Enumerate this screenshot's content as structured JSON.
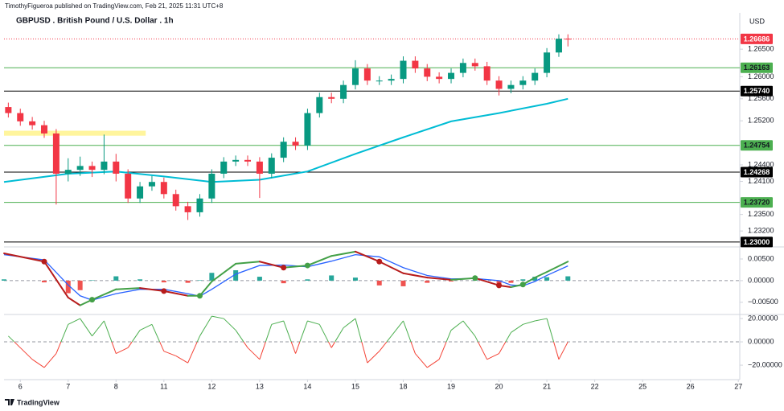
{
  "header": {
    "text": "TimothyFigueroa published on TradingView.com, Feb 21, 2025 11:31 UTC+8"
  },
  "footer": {
    "logo": "TradingView"
  },
  "chart_data": [
    {
      "type": "candlestick",
      "title": "GBPUSD . British Pound / U.S. Dollar . 1h",
      "currency": "USD",
      "xlim": [
        -0.34,
        15.03
      ],
      "xticks": [
        {
          "value": 0,
          "label": "6"
        },
        {
          "value": 1,
          "label": "7"
        },
        {
          "value": 2,
          "label": "8"
        },
        {
          "value": 3,
          "label": "11"
        },
        {
          "value": 4,
          "label": "12"
        },
        {
          "value": 5,
          "label": "13"
        },
        {
          "value": 6,
          "label": "14"
        },
        {
          "value": 7,
          "label": "15"
        },
        {
          "value": 8,
          "label": "18"
        },
        {
          "value": 9,
          "label": "19"
        },
        {
          "value": 10,
          "label": "20"
        },
        {
          "value": 11,
          "label": "21"
        },
        {
          "value": 12,
          "label": "22"
        },
        {
          "value": 13,
          "label": "25"
        },
        {
          "value": 14,
          "label": "26"
        },
        {
          "value": 15,
          "label": "27"
        }
      ],
      "ylim": [
        1.2294,
        1.2713
      ],
      "yticks": [
        {
          "value": 1.265,
          "label": "1.26500"
        },
        {
          "value": 1.26,
          "label": "1.26000"
        },
        {
          "value": 1.256,
          "label": "1.25600"
        },
        {
          "value": 1.252,
          "label": "1.25200"
        },
        {
          "value": 1.244,
          "label": "1.24400"
        },
        {
          "value": 1.241,
          "label": "1.24100"
        },
        {
          "value": 1.235,
          "label": "1.23500"
        },
        {
          "value": 1.232,
          "label": "1.23200"
        }
      ],
      "up_color": "#089981",
      "down_color": "#f23645",
      "x": [
        -0.25,
        0,
        0.25,
        0.5,
        0.75,
        1,
        1.25,
        1.5,
        1.75,
        2,
        2.25,
        2.5,
        2.75,
        3,
        3.25,
        3.5,
        3.75,
        4,
        4.25,
        4.5,
        4.75,
        5,
        5.25,
        5.5,
        5.75,
        6,
        6.25,
        6.5,
        6.75,
        7,
        7.25,
        7.5,
        7.75,
        8,
        8.25,
        8.5,
        8.75,
        9,
        9.25,
        9.5,
        9.75,
        10,
        10.25,
        10.5,
        10.75,
        11,
        11.25,
        11.44
      ],
      "open": [
        1.2545,
        1.2534,
        1.2519,
        1.2512,
        1.2497,
        1.2424,
        1.2431,
        1.2438,
        1.2431,
        1.2446,
        1.2424,
        1.2379,
        1.2401,
        1.2409,
        1.2387,
        1.2365,
        1.2354,
        1.2379,
        1.2424,
        1.2446,
        1.2449,
        1.2446,
        1.2424,
        1.2453,
        1.2482,
        1.2475,
        1.2534,
        1.2563,
        1.256,
        1.2585,
        1.2615,
        1.2593,
        1.2593,
        1.2596,
        1.2629,
        1.2615,
        1.26,
        1.2596,
        1.2607,
        1.2625,
        1.2619,
        1.2593,
        1.2578,
        1.2585,
        1.2593,
        1.2607,
        1.2644,
        1.2669
      ],
      "high": [
        1.2553,
        1.2542,
        1.2527,
        1.252,
        1.2505,
        1.2452,
        1.2455,
        1.2446,
        1.2495,
        1.246,
        1.2432,
        1.2409,
        1.242,
        1.2417,
        1.2395,
        1.2373,
        1.2387,
        1.2432,
        1.2454,
        1.2457,
        1.2457,
        1.2454,
        1.2461,
        1.249,
        1.249,
        1.2542,
        1.2571,
        1.2571,
        1.2593,
        1.263,
        1.2623,
        1.2601,
        1.2604,
        1.2637,
        1.2637,
        1.2623,
        1.2608,
        1.2615,
        1.2633,
        1.2633,
        1.2627,
        1.2601,
        1.2593,
        1.2601,
        1.2615,
        1.2652,
        1.2677,
        1.2677
      ],
      "low": [
        1.2526,
        1.2511,
        1.2504,
        1.2489,
        1.2368,
        1.241,
        1.242,
        1.2418,
        1.2423,
        1.241,
        1.2371,
        1.2371,
        1.2393,
        1.2379,
        1.2357,
        1.234,
        1.2346,
        1.2371,
        1.2416,
        1.2438,
        1.2438,
        1.238,
        1.2416,
        1.2445,
        1.2467,
        1.2467,
        1.2526,
        1.2552,
        1.2552,
        1.2577,
        1.2585,
        1.2585,
        1.2585,
        1.2588,
        1.2607,
        1.2592,
        1.2588,
        1.2588,
        1.2599,
        1.2611,
        1.2585,
        1.2566,
        1.257,
        1.2577,
        1.2585,
        1.2599,
        1.2636,
        1.2655
      ],
      "close": [
        1.2534,
        1.2519,
        1.2512,
        1.2497,
        1.2424,
        1.2431,
        1.2438,
        1.2431,
        1.2446,
        1.2424,
        1.2379,
        1.2401,
        1.2409,
        1.2387,
        1.2365,
        1.2354,
        1.2379,
        1.2424,
        1.2446,
        1.2449,
        1.2446,
        1.2424,
        1.2453,
        1.2482,
        1.2475,
        1.2534,
        1.2563,
        1.256,
        1.2585,
        1.2615,
        1.2593,
        1.2593,
        1.2596,
        1.2629,
        1.2615,
        1.26,
        1.2596,
        1.2607,
        1.2625,
        1.2619,
        1.2593,
        1.2578,
        1.2585,
        1.2593,
        1.2607,
        1.2644,
        1.2669,
        1.26686
      ],
      "ma": {
        "color": "#00bcd4",
        "x": [
          -0.34,
          1,
          2,
          3,
          4,
          5,
          6,
          7,
          8,
          9,
          10,
          11,
          11.44
        ],
        "values": [
          1.2409,
          1.2424,
          1.2428,
          1.2419,
          1.2409,
          1.2413,
          1.2428,
          1.246,
          1.249,
          1.2519,
          1.2534,
          1.2551,
          1.256
        ]
      },
      "zone": {
        "x": [
          -0.34,
          2.62
        ],
        "y": [
          1.2493,
          1.2502
        ],
        "color": "#fff59d"
      },
      "levels": [
        {
          "value": 1.26686,
          "label": "1.26686",
          "color": "#f23645",
          "style": "dotted"
        },
        {
          "value": 1.26163,
          "label": "1.26163",
          "color": "#4caf50",
          "style": "solid"
        },
        {
          "value": 1.2574,
          "label": "1.25740",
          "color": "#000000",
          "style": "solid"
        },
        {
          "value": 1.24754,
          "label": "1.24754",
          "color": "#4caf50",
          "style": "solid"
        },
        {
          "value": 1.24268,
          "label": "1.24268",
          "color": "#000000",
          "style": "solid"
        },
        {
          "value": 1.2372,
          "label": "1.23720",
          "color": "#4caf50",
          "style": "solid"
        },
        {
          "value": 1.23,
          "label": "1.23000",
          "color": "#000000",
          "style": "solid"
        }
      ]
    },
    {
      "type": "macd",
      "ylim": [
        -0.008,
        0.0076
      ],
      "yticks": [
        {
          "value": 0.005,
          "label": "0.00500"
        },
        {
          "value": 0,
          "label": "0.00000"
        },
        {
          "value": -0.005,
          "label": "−0.00500"
        }
      ],
      "x": [
        -0.34,
        0.5,
        1,
        1.25,
        1.5,
        2,
        2.5,
        3,
        3.5,
        3.75,
        4,
        4.5,
        5,
        5.5,
        6,
        6.5,
        7,
        7.5,
        8,
        8.5,
        9,
        9.5,
        10,
        10.25,
        10.5,
        10.75,
        11,
        11.44
      ],
      "macd": [
        0.0063,
        0.0044,
        -0.0039,
        -0.0057,
        -0.0044,
        -0.002,
        -0.0017,
        -0.0024,
        -0.0035,
        -0.0035,
        -0.0002,
        0.0039,
        0.0044,
        0.003,
        0.0035,
        0.0057,
        0.0067,
        0.0044,
        0.0017,
        0.0007,
        0.0002,
        0.0006,
        -0.0011,
        -0.0015,
        -0.0009,
        0.0007,
        0.002,
        0.0044
      ],
      "signal": [
        0.006,
        0.0048,
        -0.001,
        -0.0035,
        -0.0045,
        -0.003,
        -0.002,
        -0.002,
        -0.003,
        -0.0036,
        -0.002,
        0.0015,
        0.0035,
        0.0036,
        0.0032,
        0.0045,
        0.006,
        0.0055,
        0.003,
        0.0012,
        0.0004,
        0.0005,
        0,
        -0.001,
        -0.0012,
        -0.0002,
        0.0012,
        0.0034
      ],
      "histogram": [
        0.0003,
        -0.0004,
        -0.0029,
        -0.0022,
        0.0001,
        0.001,
        0.0003,
        -0.0004,
        -0.0005,
        0.0001,
        0.0018,
        0.0024,
        0.0009,
        -0.0006,
        0.0003,
        0.0012,
        0.0007,
        -0.0011,
        -0.0013,
        -0.0005,
        -0.0002,
        0.0001,
        -0.0011,
        -0.0005,
        0.0003,
        0.0009,
        0.0008,
        0.001
      ],
      "macd_up_color": "#43a047",
      "macd_down_color": "#b71c1c",
      "signal_color": "#2962ff",
      "hist_up_color": "#26a69a",
      "hist_down_color": "#ef5350"
    },
    {
      "type": "line",
      "ylim": [
        -31,
        22.8
      ],
      "yticks": [
        {
          "value": 20,
          "label": "20.00000"
        },
        {
          "value": 0,
          "label": "0.00000"
        },
        {
          "value": -20,
          "label": "−20.00000"
        }
      ],
      "x": [
        -0.25,
        0,
        0.25,
        0.5,
        0.75,
        1,
        1.25,
        1.5,
        1.75,
        2,
        2.25,
        2.5,
        2.75,
        3,
        3.25,
        3.5,
        3.75,
        4,
        4.25,
        4.5,
        4.75,
        5,
        5.25,
        5.5,
        5.75,
        6,
        6.25,
        6.5,
        6.75,
        7,
        7.25,
        7.5,
        7.75,
        8,
        8.25,
        8.5,
        8.75,
        9,
        9.25,
        9.5,
        9.75,
        10,
        10.25,
        10.5,
        10.75,
        11,
        11.25,
        11.44
      ],
      "values": [
        5,
        -5,
        -15,
        -22,
        -10,
        15,
        20,
        5,
        18,
        -10,
        -5,
        10,
        15,
        -8,
        -12,
        -18,
        5,
        22,
        20,
        10,
        -5,
        -15,
        15,
        18,
        -10,
        18,
        15,
        -5,
        12,
        20,
        -18,
        -8,
        5,
        18,
        -10,
        -22,
        -15,
        10,
        18,
        5,
        -15,
        -10,
        8,
        15,
        18,
        20,
        -15,
        0
      ],
      "up_color": "#4caf50",
      "down_color": "#f44336"
    }
  ]
}
